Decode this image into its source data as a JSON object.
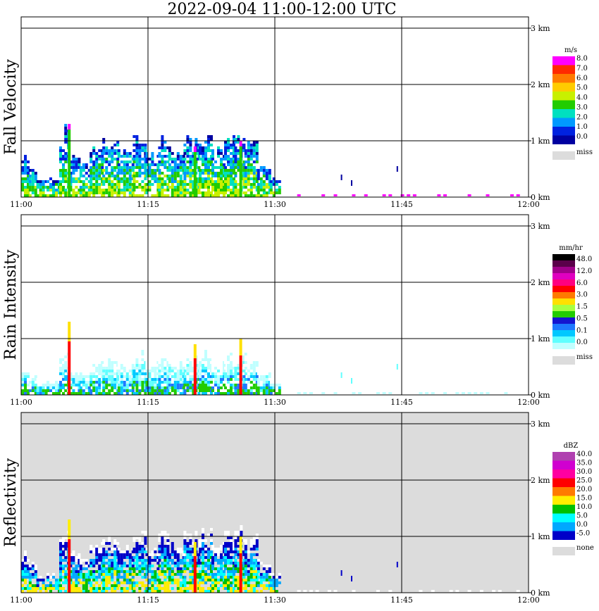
{
  "title": "2022-09-04   11:00-12:00 UTC",
  "x_ticks": [
    "11:00",
    "11:15",
    "11:30",
    "11:45",
    "12:00"
  ],
  "y_ticks": [
    "0 km",
    "1 km",
    "2 km",
    "3 km"
  ],
  "panels": [
    {
      "ylabel": "Fall Velocity",
      "background": "#ffffff",
      "legend": {
        "unit": "m/s",
        "labels": [
          "8.0",
          "7.0",
          "6.0",
          "5.0",
          "4.0",
          "3.0",
          "2.0",
          "1.0",
          "0.0"
        ],
        "colors": [
          "#ff00ff",
          "#ff2a00",
          "#ff7a00",
          "#ffcc00",
          "#c8f000",
          "#22cc00",
          "#00e0c0",
          "#0099ff",
          "#0022e0",
          "#0000a0"
        ],
        "miss_label": "miss",
        "miss_color": "#dcdcdc"
      }
    },
    {
      "ylabel": "Rain Intensity",
      "background": "#ffffff",
      "legend": {
        "unit": "mm/hr",
        "labels": [
          "48.0",
          "12.0",
          "6.0",
          "3.0",
          "1.5",
          "0.5",
          "0.1",
          "0.0"
        ],
        "colors": [
          "#000000",
          "#5a004a",
          "#a0008a",
          "#e000c0",
          "#ff0080",
          "#ff0000",
          "#ff7a00",
          "#ffe000",
          "#a8ff40",
          "#22cc00",
          "#1414d0",
          "#1e78ff",
          "#00c8ff",
          "#60ffff",
          "#c0ffff"
        ],
        "miss_label": "miss",
        "miss_color": "#dcdcdc"
      }
    },
    {
      "ylabel": "Reflectivity",
      "background": "#dcdcdc",
      "legend": {
        "unit": "dBZ",
        "labels": [
          "40.0",
          "35.0",
          "30.0",
          "25.0",
          "20.0",
          "15.0",
          "10.0",
          "5.0",
          "0.0",
          "-5.0"
        ],
        "colors": [
          "#b040b0",
          "#d000d0",
          "#ff00a0",
          "#ff0000",
          "#ff7a00",
          "#ffee00",
          "#00c000",
          "#00ffff",
          "#00a8ff",
          "#0000c8"
        ],
        "miss_label": "none",
        "miss_color": "#dcdcdc"
      }
    }
  ],
  "chart_data": [
    {
      "type": "heatmap",
      "title": "Fall Velocity",
      "x_range": [
        "11:00",
        "12:00"
      ],
      "y_range_km": [
        0,
        3.2
      ],
      "unit": "m/s",
      "cells": []
    },
    {
      "type": "heatmap",
      "title": "Rain Intensity",
      "x_range": [
        "11:00",
        "12:00"
      ],
      "y_range_km": [
        0,
        3.2
      ],
      "unit": "mm/hr",
      "cells": []
    },
    {
      "type": "heatmap",
      "title": "Reflectivity",
      "x_range": [
        "11:00",
        "12:00"
      ],
      "y_range_km": [
        0,
        3.2
      ],
      "unit": "dBZ",
      "cells": []
    }
  ]
}
